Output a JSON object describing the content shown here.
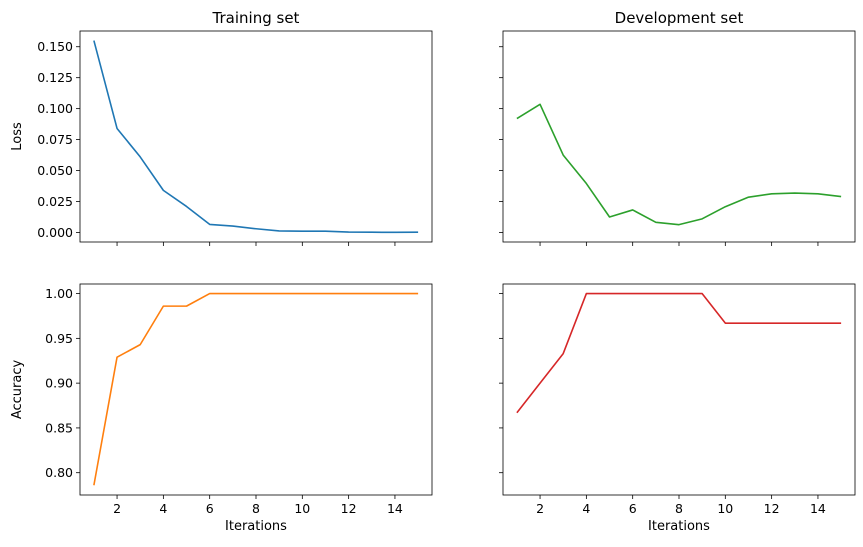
{
  "chart_data": [
    {
      "type": "line",
      "title": "Training set",
      "xlabel": "",
      "ylabel": "Loss",
      "xlim": [
        0.4,
        15.6
      ],
      "ylim": [
        -0.0077,
        0.1627
      ],
      "xticks": [
        2,
        4,
        6,
        8,
        10,
        12,
        14
      ],
      "xtick_labels_visible": false,
      "yticks": [
        0.0,
        0.025,
        0.05,
        0.075,
        0.1,
        0.125,
        0.15
      ],
      "ytick_labels": [
        "0.000",
        "0.025",
        "0.050",
        "0.075",
        "0.100",
        "0.125",
        "0.150"
      ],
      "ytick_labels_visible": true,
      "grid": false,
      "series": [
        {
          "color": "#1f77b4",
          "x": [
            1,
            2,
            3,
            4,
            5,
            6,
            7,
            8,
            9,
            10,
            11,
            12,
            13,
            14,
            15
          ],
          "y": [
            0.155,
            0.084,
            0.061,
            0.034,
            0.021,
            0.0065,
            0.0052,
            0.003,
            0.0012,
            0.001,
            0.001,
            0.0003,
            0.0002,
            0.0001,
            0.0002
          ]
        }
      ]
    },
    {
      "type": "line",
      "title": "Development set",
      "xlabel": "",
      "ylabel": "",
      "xlim": [
        0.4,
        15.6
      ],
      "ylim": [
        -0.0077,
        0.1627
      ],
      "xticks": [
        2,
        4,
        6,
        8,
        10,
        12,
        14
      ],
      "xtick_labels_visible": false,
      "yticks": [
        0.0,
        0.025,
        0.05,
        0.075,
        0.1,
        0.125,
        0.15
      ],
      "ytick_labels_visible": false,
      "grid": false,
      "series": [
        {
          "color": "#2ca02c",
          "x": [
            1,
            2,
            3,
            4,
            5,
            6,
            7,
            8,
            9,
            10,
            11,
            12,
            13,
            14,
            15
          ],
          "y": [
            0.092,
            0.1035,
            0.0625,
            0.0395,
            0.0125,
            0.0182,
            0.0082,
            0.0063,
            0.011,
            0.0208,
            0.0285,
            0.0312,
            0.0318,
            0.0312,
            0.029
          ]
        }
      ]
    },
    {
      "type": "line",
      "title": "",
      "xlabel": "Iterations",
      "ylabel": "Accuracy",
      "xlim": [
        0.4,
        15.6
      ],
      "ylim": [
        0.7751,
        1.0107
      ],
      "xticks": [
        2,
        4,
        6,
        8,
        10,
        12,
        14
      ],
      "xtick_labels": [
        "2",
        "4",
        "6",
        "8",
        "10",
        "12",
        "14"
      ],
      "xtick_labels_visible": true,
      "yticks": [
        0.8,
        0.85,
        0.9,
        0.95,
        1.0
      ],
      "ytick_labels": [
        "0.80",
        "0.85",
        "0.90",
        "0.95",
        "1.00"
      ],
      "ytick_labels_visible": true,
      "grid": false,
      "series": [
        {
          "color": "#ff7f0e",
          "x": [
            1,
            2,
            3,
            4,
            5,
            6,
            7,
            8,
            9,
            10,
            11,
            12,
            13,
            14,
            15
          ],
          "y": [
            0.786,
            0.929,
            0.943,
            0.986,
            0.986,
            1.0,
            1.0,
            1.0,
            1.0,
            1.0,
            1.0,
            1.0,
            1.0,
            1.0,
            1.0
          ]
        }
      ]
    },
    {
      "type": "line",
      "title": "",
      "xlabel": "Iterations",
      "ylabel": "",
      "xlim": [
        0.4,
        15.6
      ],
      "ylim": [
        0.7751,
        1.0107
      ],
      "xticks": [
        2,
        4,
        6,
        8,
        10,
        12,
        14
      ],
      "xtick_labels": [
        "2",
        "4",
        "6",
        "8",
        "10",
        "12",
        "14"
      ],
      "xtick_labels_visible": true,
      "yticks": [
        0.8,
        0.85,
        0.9,
        0.95,
        1.0
      ],
      "ytick_labels_visible": false,
      "grid": false,
      "series": [
        {
          "color": "#d62728",
          "x": [
            1,
            2,
            3,
            4,
            5,
            6,
            7,
            8,
            9,
            10,
            11,
            12,
            13,
            14,
            15
          ],
          "y": [
            0.867,
            0.9,
            0.933,
            1.0,
            1.0,
            1.0,
            1.0,
            1.0,
            1.0,
            0.967,
            0.967,
            0.967,
            0.967,
            0.967,
            0.967
          ]
        }
      ]
    }
  ]
}
